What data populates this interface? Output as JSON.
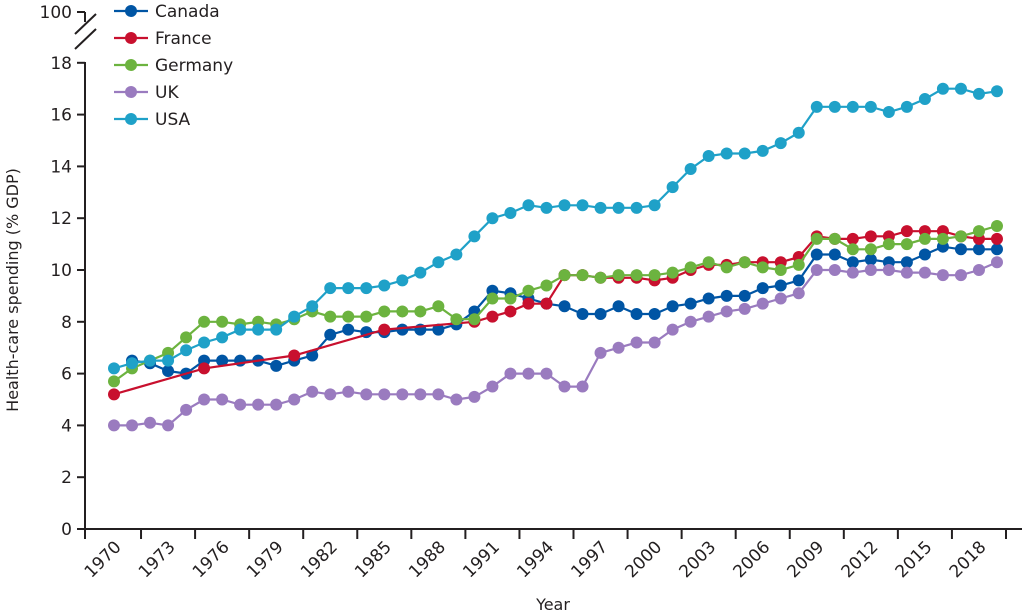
{
  "chart_data": {
    "type": "line",
    "title": "",
    "xlabel": "Year",
    "ylabel": "Health-care spending (% GDP)",
    "xlim": [
      1970,
      2019
    ],
    "ylim": [
      0,
      18
    ],
    "y_break": {
      "from": 18,
      "to": 100
    },
    "y_ticks": [
      0,
      2,
      4,
      6,
      8,
      10,
      12,
      14,
      16,
      18
    ],
    "y_tick_labels": [
      "0",
      "2",
      "4",
      "6",
      "8",
      "10",
      "12",
      "14",
      "16",
      "18"
    ],
    "y_top_label": "100",
    "x_ticks": [
      1970,
      1973,
      1976,
      1979,
      1982,
      1985,
      1988,
      1991,
      1994,
      1997,
      2000,
      2003,
      2006,
      2009,
      2012,
      2015,
      2018
    ],
    "x_tick_labels": [
      "1970",
      "1973",
      "1976",
      "1979",
      "1982",
      "1985",
      "1988",
      "1991",
      "1994",
      "1997",
      "2000",
      "2003",
      "2006",
      "2009",
      "2012",
      "2015",
      "2018"
    ],
    "grid": false,
    "legend_position": "top-left",
    "series": [
      {
        "name": "Canada",
        "color": "#0055a4",
        "points": [
          [
            1971,
            6.5
          ],
          [
            1972,
            6.4
          ],
          [
            1973,
            6.1
          ],
          [
            1974,
            6.0
          ],
          [
            1975,
            6.5
          ],
          [
            1976,
            6.5
          ],
          [
            1977,
            6.5
          ],
          [
            1978,
            6.5
          ],
          [
            1979,
            6.3
          ],
          [
            1980,
            6.5
          ],
          [
            1981,
            6.7
          ],
          [
            1982,
            7.5
          ],
          [
            1983,
            7.7
          ],
          [
            1984,
            7.6
          ],
          [
            1985,
            7.6
          ],
          [
            1986,
            7.7
          ],
          [
            1987,
            7.7
          ],
          [
            1988,
            7.7
          ],
          [
            1989,
            7.9
          ],
          [
            1990,
            8.4
          ],
          [
            1991,
            9.2
          ],
          [
            1992,
            9.1
          ],
          [
            1993,
            8.9
          ],
          [
            1994,
            8.7
          ],
          [
            1995,
            8.6
          ],
          [
            1996,
            8.3
          ],
          [
            1997,
            8.3
          ],
          [
            1998,
            8.6
          ],
          [
            1999,
            8.3
          ],
          [
            2000,
            8.3
          ],
          [
            2001,
            8.6
          ],
          [
            2002,
            8.7
          ],
          [
            2003,
            8.9
          ],
          [
            2004,
            9.0
          ],
          [
            2005,
            9.0
          ],
          [
            2006,
            9.3
          ],
          [
            2007,
            9.4
          ],
          [
            2008,
            9.6
          ],
          [
            2009,
            10.6
          ],
          [
            2010,
            10.6
          ],
          [
            2011,
            10.3
          ],
          [
            2012,
            10.4
          ],
          [
            2013,
            10.3
          ],
          [
            2014,
            10.3
          ],
          [
            2015,
            10.6
          ],
          [
            2016,
            10.9
          ],
          [
            2017,
            10.8
          ],
          [
            2018,
            10.8
          ],
          [
            2019,
            10.8
          ]
        ]
      },
      {
        "name": "France",
        "color": "#c8102e",
        "points": [
          [
            1970,
            5.2
          ],
          [
            1975,
            6.2
          ],
          [
            1980,
            6.7
          ],
          [
            1985,
            7.7
          ],
          [
            1990,
            8.0
          ],
          [
            1991,
            8.2
          ],
          [
            1992,
            8.4
          ],
          [
            1993,
            8.7
          ],
          [
            1994,
            8.7
          ],
          [
            1995,
            9.8
          ],
          [
            1996,
            9.8
          ],
          [
            1997,
            9.7
          ],
          [
            1998,
            9.7
          ],
          [
            1999,
            9.7
          ],
          [
            2000,
            9.6
          ],
          [
            2001,
            9.7
          ],
          [
            2002,
            10.0
          ],
          [
            2003,
            10.2
          ],
          [
            2004,
            10.2
          ],
          [
            2005,
            10.3
          ],
          [
            2006,
            10.3
          ],
          [
            2007,
            10.3
          ],
          [
            2008,
            10.5
          ],
          [
            2009,
            11.3
          ],
          [
            2010,
            11.2
          ],
          [
            2011,
            11.2
          ],
          [
            2012,
            11.3
          ],
          [
            2013,
            11.3
          ],
          [
            2014,
            11.5
          ],
          [
            2015,
            11.5
          ],
          [
            2016,
            11.5
          ],
          [
            2017,
            11.3
          ],
          [
            2018,
            11.2
          ],
          [
            2019,
            11.2
          ]
        ]
      },
      {
        "name": "Germany",
        "color": "#6cb33f",
        "points": [
          [
            1970,
            5.7
          ],
          [
            1971,
            6.2
          ],
          [
            1972,
            6.5
          ],
          [
            1973,
            6.8
          ],
          [
            1974,
            7.4
          ],
          [
            1975,
            8.0
          ],
          [
            1976,
            8.0
          ],
          [
            1977,
            7.9
          ],
          [
            1978,
            8.0
          ],
          [
            1979,
            7.9
          ],
          [
            1980,
            8.1
          ],
          [
            1981,
            8.4
          ],
          [
            1982,
            8.2
          ],
          [
            1983,
            8.2
          ],
          [
            1984,
            8.2
          ],
          [
            1985,
            8.4
          ],
          [
            1986,
            8.4
          ],
          [
            1987,
            8.4
          ],
          [
            1988,
            8.6
          ],
          [
            1989,
            8.1
          ],
          [
            1990,
            8.1
          ],
          [
            1991,
            8.9
          ],
          [
            1992,
            8.9
          ],
          [
            1993,
            9.2
          ],
          [
            1994,
            9.4
          ],
          [
            1995,
            9.8
          ],
          [
            1996,
            9.8
          ],
          [
            1997,
            9.7
          ],
          [
            1998,
            9.8
          ],
          [
            1999,
            9.8
          ],
          [
            2000,
            9.8
          ],
          [
            2001,
            9.9
          ],
          [
            2002,
            10.1
          ],
          [
            2003,
            10.3
          ],
          [
            2004,
            10.1
          ],
          [
            2005,
            10.3
          ],
          [
            2006,
            10.1
          ],
          [
            2007,
            10.0
          ],
          [
            2008,
            10.2
          ],
          [
            2009,
            11.2
          ],
          [
            2010,
            11.2
          ],
          [
            2011,
            10.8
          ],
          [
            2012,
            10.8
          ],
          [
            2013,
            11.0
          ],
          [
            2014,
            11.0
          ],
          [
            2015,
            11.2
          ],
          [
            2016,
            11.2
          ],
          [
            2017,
            11.3
          ],
          [
            2018,
            11.5
          ],
          [
            2019,
            11.7
          ]
        ]
      },
      {
        "name": "UK",
        "color": "#9a7bbf",
        "points": [
          [
            1970,
            4.0
          ],
          [
            1971,
            4.0
          ],
          [
            1972,
            4.1
          ],
          [
            1973,
            4.0
          ],
          [
            1974,
            4.6
          ],
          [
            1975,
            5.0
          ],
          [
            1976,
            5.0
          ],
          [
            1977,
            4.8
          ],
          [
            1978,
            4.8
          ],
          [
            1979,
            4.8
          ],
          [
            1980,
            5.0
          ],
          [
            1981,
            5.3
          ],
          [
            1982,
            5.2
          ],
          [
            1983,
            5.3
          ],
          [
            1984,
            5.2
          ],
          [
            1985,
            5.2
          ],
          [
            1986,
            5.2
          ],
          [
            1987,
            5.2
          ],
          [
            1988,
            5.2
          ],
          [
            1989,
            5.0
          ],
          [
            1990,
            5.1
          ],
          [
            1991,
            5.5
          ],
          [
            1992,
            6.0
          ],
          [
            1993,
            6.0
          ],
          [
            1994,
            6.0
          ],
          [
            1995,
            5.5
          ],
          [
            1996,
            5.5
          ],
          [
            1997,
            6.8
          ],
          [
            1998,
            7.0
          ],
          [
            1999,
            7.2
          ],
          [
            2000,
            7.2
          ],
          [
            2001,
            7.7
          ],
          [
            2002,
            8.0
          ],
          [
            2003,
            8.2
          ],
          [
            2004,
            8.4
          ],
          [
            2005,
            8.5
          ],
          [
            2006,
            8.7
          ],
          [
            2007,
            8.9
          ],
          [
            2008,
            9.1
          ],
          [
            2009,
            10.0
          ],
          [
            2010,
            10.0
          ],
          [
            2011,
            9.9
          ],
          [
            2012,
            10.0
          ],
          [
            2013,
            10.0
          ],
          [
            2014,
            9.9
          ],
          [
            2015,
            9.9
          ],
          [
            2016,
            9.8
          ],
          [
            2017,
            9.8
          ],
          [
            2018,
            10.0
          ],
          [
            2019,
            10.3
          ]
        ]
      },
      {
        "name": "USA",
        "color": "#1fa1c8",
        "points": [
          [
            1970,
            6.2
          ],
          [
            1971,
            6.4
          ],
          [
            1972,
            6.5
          ],
          [
            1973,
            6.5
          ],
          [
            1974,
            6.9
          ],
          [
            1975,
            7.2
          ],
          [
            1976,
            7.4
          ],
          [
            1977,
            7.7
          ],
          [
            1978,
            7.7
          ],
          [
            1979,
            7.7
          ],
          [
            1980,
            8.2
          ],
          [
            1981,
            8.6
          ],
          [
            1982,
            9.3
          ],
          [
            1983,
            9.3
          ],
          [
            1984,
            9.3
          ],
          [
            1985,
            9.4
          ],
          [
            1986,
            9.6
          ],
          [
            1987,
            9.9
          ],
          [
            1988,
            10.3
          ],
          [
            1989,
            10.6
          ],
          [
            1990,
            11.3
          ],
          [
            1991,
            12.0
          ],
          [
            1992,
            12.2
          ],
          [
            1993,
            12.5
          ],
          [
            1994,
            12.4
          ],
          [
            1995,
            12.5
          ],
          [
            1996,
            12.5
          ],
          [
            1997,
            12.4
          ],
          [
            1998,
            12.4
          ],
          [
            1999,
            12.4
          ],
          [
            2000,
            12.5
          ],
          [
            2001,
            13.2
          ],
          [
            2002,
            13.9
          ],
          [
            2003,
            14.4
          ],
          [
            2004,
            14.5
          ],
          [
            2005,
            14.5
          ],
          [
            2006,
            14.6
          ],
          [
            2007,
            14.9
          ],
          [
            2008,
            15.3
          ],
          [
            2009,
            16.3
          ],
          [
            2010,
            16.3
          ],
          [
            2011,
            16.3
          ],
          [
            2012,
            16.3
          ],
          [
            2013,
            16.1
          ],
          [
            2014,
            16.3
          ],
          [
            2015,
            16.6
          ],
          [
            2016,
            17.0
          ],
          [
            2017,
            17.0
          ],
          [
            2018,
            16.8
          ],
          [
            2019,
            16.9
          ]
        ]
      }
    ]
  }
}
